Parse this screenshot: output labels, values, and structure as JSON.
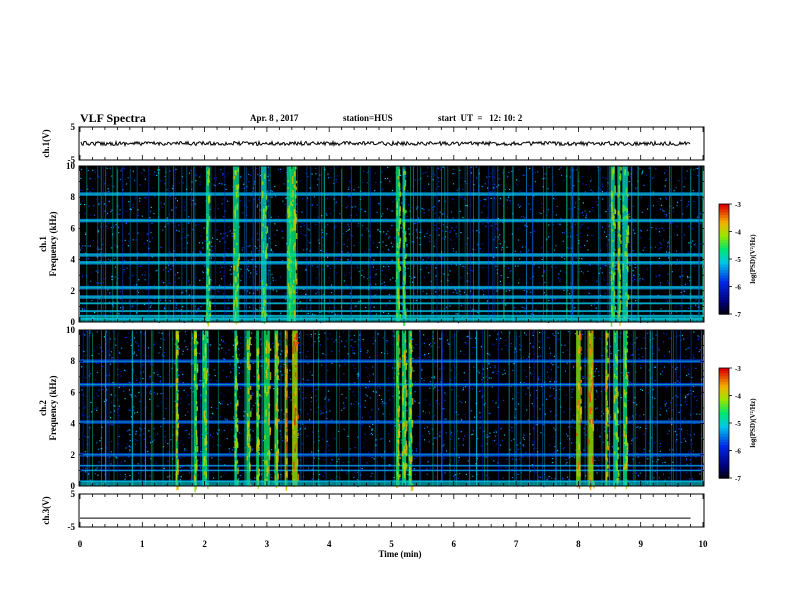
{
  "header": {
    "title": "VLF Spectra",
    "date": "Apr. 8 , 2017",
    "station": "station=HUS",
    "start": "start  UT  =   12: 10: 2"
  },
  "chart_data": [
    {
      "type": "line",
      "name": "ch1-waveform",
      "ylabel": "ch.1(V)",
      "ylim": [
        -5,
        5
      ],
      "yticks": [
        "5",
        "-5"
      ],
      "xlim": [
        0,
        10
      ],
      "series": [
        {
          "x": [
            0,
            9.8
          ],
          "y": [
            0,
            0
          ]
        }
      ]
    },
    {
      "type": "heatmap",
      "name": "ch1-spectrogram",
      "ylabel_top": "ch.1",
      "ylabel": "Frequency (kHz)",
      "ylim": [
        0,
        10
      ],
      "yticks": [
        "0",
        "2",
        "4",
        "6",
        "8",
        "10"
      ],
      "xlim": [
        0,
        10
      ],
      "colorbar": {
        "label": "log(PSD)(V²/Hz)",
        "range": [
          -7,
          -3
        ],
        "ticks": [
          "-3",
          "-4",
          "-5",
          "-6",
          "-7"
        ]
      },
      "bands_khz": [
        0.2,
        0.4,
        0.7,
        1.2,
        1.6,
        2.2,
        3.8,
        4.3,
        6.5,
        8.2
      ],
      "bursts_min": [
        2.05,
        2.5,
        2.95,
        3.35,
        3.42,
        5.1,
        5.2,
        8.55,
        8.65,
        8.75
      ]
    },
    {
      "type": "heatmap",
      "name": "ch2-spectrogram",
      "ylabel_top": "ch.2",
      "ylabel": "Frequency (kHz)",
      "ylim": [
        0,
        10
      ],
      "yticks": [
        "0",
        "2",
        "4",
        "6",
        "8",
        "10"
      ],
      "xlim": [
        0,
        10
      ],
      "colorbar": {
        "label": "log(PSD)(V²/Hz)",
        "range": [
          -7,
          -3
        ],
        "ticks": [
          "-3",
          "-4",
          "-5",
          "-6",
          "-7"
        ]
      },
      "bands_khz": [
        0.3,
        1.0,
        1.3,
        2.0,
        4.1,
        6.5,
        8.0
      ],
      "bursts_min": [
        1.55,
        1.85,
        2.0,
        2.5,
        2.7,
        2.85,
        3.0,
        3.15,
        3.3,
        3.45,
        5.1,
        5.2,
        5.3,
        8.0,
        8.2,
        8.45,
        8.6,
        8.75
      ]
    },
    {
      "type": "line",
      "name": "ch3-waveform",
      "ylabel": "ch.3(V)",
      "ylim": [
        -5,
        5
      ],
      "yticks": [
        "5",
        "-5"
      ],
      "xlim": [
        0,
        10
      ],
      "xlabel": "Time (min)",
      "xticks": [
        "0",
        "1",
        "2",
        "3",
        "4",
        "5",
        "6",
        "7",
        "8",
        "9",
        "10"
      ],
      "series": [
        {
          "x": [
            0,
            9.8
          ],
          "y": [
            -2.3,
            -2.3
          ]
        }
      ]
    }
  ]
}
